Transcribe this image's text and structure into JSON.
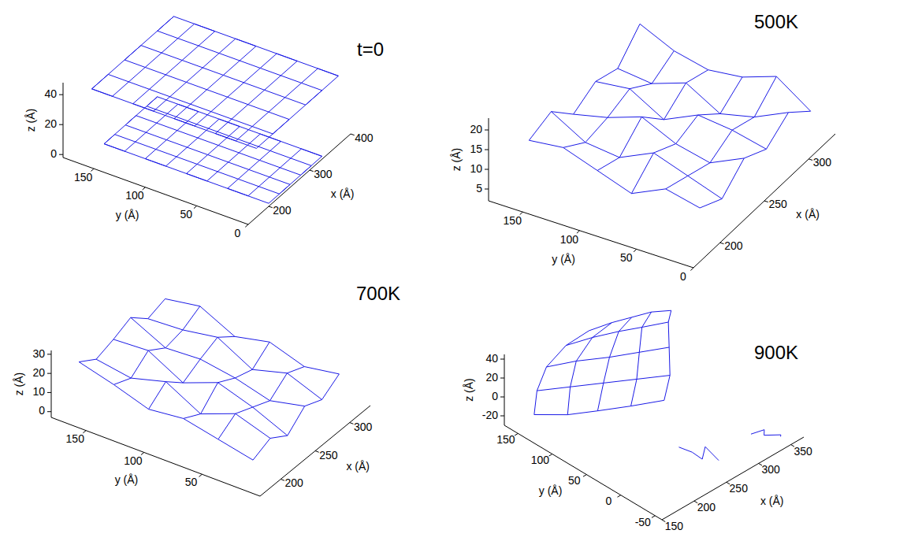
{
  "chart_data": [
    {
      "type": "line3d",
      "title": "t=0",
      "xlabel": "x (Å)",
      "ylabel": "y (Å)",
      "zlabel": "z (Å)",
      "color": "#1a1ae6",
      "xlim": [
        150,
        400
      ],
      "xticks": [
        200,
        300,
        400
      ],
      "ylim": [
        0,
        180
      ],
      "yticks": [
        0,
        50,
        100,
        150
      ],
      "zlim": [
        -2,
        48
      ],
      "zticks": [
        0,
        20,
        40
      ],
      "series": [
        {
          "x": [
            200,
            330,
            330,
            200,
            200,
            330,
            330,
            200,
            200,
            330,
            330,
            200,
            200,
            330,
            330,
            200,
            200,
            330
          ],
          "y": [
            0,
            0,
            20,
            20,
            40,
            40,
            60,
            60,
            80,
            80,
            100,
            100,
            120,
            120,
            140,
            140,
            160,
            160
          ],
          "z": [
            0,
            0,
            0,
            0,
            0,
            0,
            0,
            0,
            0,
            0,
            0,
            0,
            0,
            0,
            0,
            0,
            0,
            0
          ]
        },
        {
          "x": [
            200,
            200,
            226,
            226,
            252,
            252,
            278,
            278,
            304,
            304,
            330,
            330
          ],
          "y": [
            0,
            160,
            160,
            0,
            0,
            160,
            160,
            0,
            0,
            160,
            160,
            0
          ],
          "z": [
            0,
            0,
            0,
            0,
            0,
            0,
            0,
            0,
            0,
            0,
            0,
            0
          ]
        },
        {
          "x": [
            170,
            370,
            370,
            170,
            170,
            370,
            370,
            170,
            170,
            370,
            370,
            170,
            170,
            370,
            370,
            170,
            170,
            370
          ],
          "y": [
            0,
            0,
            20,
            20,
            40,
            40,
            60,
            60,
            80,
            80,
            100,
            100,
            120,
            120,
            140,
            140,
            160,
            160
          ],
          "z": [
            44,
            44,
            44,
            44,
            44,
            44,
            44,
            44,
            44,
            44,
            44,
            44,
            44,
            44,
            44,
            44,
            44,
            44
          ]
        },
        {
          "x": [
            170,
            170,
            210,
            210,
            250,
            250,
            290,
            290,
            330,
            330,
            370,
            370
          ],
          "y": [
            0,
            160,
            160,
            0,
            0,
            160,
            160,
            0,
            0,
            160,
            160,
            0
          ],
          "z": [
            44,
            44,
            44,
            44,
            44,
            44,
            44,
            44,
            44,
            44,
            44,
            44
          ]
        }
      ]
    },
    {
      "type": "line3d",
      "title": "500K",
      "xlabel": "x (Å)",
      "ylabel": "y (Å)",
      "zlabel": "z (Å)",
      "color": "#1a1ae6",
      "xlim": [
        170,
        330
      ],
      "xticks": [
        200,
        250,
        300
      ],
      "ylim": [
        0,
        180
      ],
      "yticks": [
        0,
        50,
        100,
        150
      ],
      "zlim": [
        2,
        23
      ],
      "zticks": [
        5,
        10,
        15,
        20
      ],
      "series": [
        {
          "x": [
            190,
            215,
            240,
            265,
            290,
            315
          ],
          "y": [
            10,
            10,
            10,
            10,
            10,
            10
          ],
          "z": [
            12,
            9,
            14,
            11,
            15,
            10
          ]
        },
        {
          "x": [
            190,
            215,
            240,
            265,
            290,
            315
          ],
          "y": [
            40,
            40,
            40,
            40,
            40,
            40
          ],
          "z": [
            14,
            12,
            10,
            13,
            11,
            16
          ]
        },
        {
          "x": [
            190,
            215,
            240,
            265,
            290,
            315
          ],
          "y": [
            70,
            70,
            70,
            70,
            70,
            70
          ],
          "z": [
            10,
            15,
            12,
            14,
            9,
            13
          ]
        },
        {
          "x": [
            190,
            215,
            240,
            265,
            290,
            315
          ],
          "y": [
            100,
            100,
            100,
            100,
            100,
            100
          ],
          "z": [
            13,
            11,
            16,
            10,
            14,
            12
          ]
        },
        {
          "x": [
            190,
            215,
            240,
            265,
            290,
            315
          ],
          "y": [
            130,
            130,
            130,
            130,
            130,
            130
          ],
          "z": [
            16,
            12,
            13,
            15,
            11,
            14
          ]
        },
        {
          "x": [
            190,
            215,
            240,
            265,
            290,
            315
          ],
          "y": [
            160,
            160,
            160,
            160,
            160,
            160
          ],
          "z": [
            15,
            17,
            11,
            14,
            12,
            18
          ]
        },
        {
          "x": [
            190,
            190,
            190,
            190,
            190,
            190
          ],
          "y": [
            10,
            40,
            70,
            100,
            130,
            160
          ],
          "z": [
            12,
            14,
            10,
            13,
            16,
            15
          ]
        },
        {
          "x": [
            215,
            215,
            215,
            215,
            215,
            215
          ],
          "y": [
            10,
            40,
            70,
            100,
            130,
            160
          ],
          "z": [
            9,
            12,
            15,
            11,
            12,
            17
          ]
        },
        {
          "x": [
            240,
            240,
            240,
            240,
            240,
            240
          ],
          "y": [
            10,
            40,
            70,
            100,
            130,
            160
          ],
          "z": [
            14,
            10,
            12,
            16,
            13,
            11
          ]
        },
        {
          "x": [
            265,
            265,
            265,
            265,
            265,
            265
          ],
          "y": [
            10,
            40,
            70,
            100,
            130,
            160
          ],
          "z": [
            11,
            13,
            14,
            10,
            15,
            14
          ]
        },
        {
          "x": [
            290,
            290,
            290,
            290,
            290,
            290
          ],
          "y": [
            10,
            40,
            70,
            100,
            130,
            160
          ],
          "z": [
            15,
            11,
            9,
            14,
            11,
            12
          ]
        },
        {
          "x": [
            315,
            315,
            315,
            315,
            315,
            315
          ],
          "y": [
            10,
            40,
            70,
            100,
            130,
            160
          ],
          "z": [
            10,
            16,
            13,
            12,
            14,
            18
          ]
        }
      ]
    },
    {
      "type": "line3d",
      "title": "700K",
      "xlabel": "x (Å)",
      "ylabel": "y (Å)",
      "zlabel": "z (Å)",
      "color": "#1a1ae6",
      "xlim": [
        170,
        330
      ],
      "xticks": [
        200,
        250,
        300
      ],
      "ylim": [
        0,
        180
      ],
      "yticks": [
        50,
        100,
        150
      ],
      "zlim": [
        -3,
        32
      ],
      "zticks": [
        0,
        10,
        20,
        30
      ],
      "series": [
        {
          "x": [
            185,
            210,
            235,
            260,
            285,
            310
          ],
          "y": [
            15,
            15,
            15,
            15,
            15,
            15
          ],
          "z": [
            8,
            12,
            6,
            14,
            10,
            16
          ]
        },
        {
          "x": [
            185,
            210,
            235,
            260,
            285,
            310
          ],
          "y": [
            45,
            45,
            45,
            45,
            45,
            45
          ],
          "z": [
            12,
            18,
            14,
            10,
            17,
            13
          ]
        },
        {
          "x": [
            185,
            210,
            235,
            260,
            285,
            310
          ],
          "y": [
            75,
            75,
            75,
            75,
            75,
            75
          ],
          "z": [
            16,
            11,
            20,
            15,
            12,
            19
          ]
        },
        {
          "x": [
            185,
            210,
            235,
            260,
            285,
            310
          ],
          "y": [
            105,
            105,
            105,
            105,
            105,
            105
          ],
          "z": [
            14,
            21,
            13,
            18,
            22,
            15
          ]
        },
        {
          "x": [
            185,
            210,
            235,
            260,
            285,
            310
          ],
          "y": [
            135,
            135,
            135,
            135,
            135,
            135
          ],
          "z": [
            20,
            16,
            23,
            17,
            19,
            24
          ]
        },
        {
          "x": [
            185,
            210,
            235,
            260,
            285,
            310
          ],
          "y": [
            165,
            165,
            165,
            165,
            165,
            165
          ],
          "z": [
            25,
            19,
            22,
            26,
            18,
            21
          ]
        },
        {
          "x": [
            185,
            185,
            185,
            185,
            185,
            185
          ],
          "y": [
            15,
            45,
            75,
            105,
            135,
            165
          ],
          "z": [
            8,
            12,
            16,
            14,
            20,
            25
          ]
        },
        {
          "x": [
            210,
            210,
            210,
            210,
            210,
            210
          ],
          "y": [
            15,
            45,
            75,
            105,
            135,
            165
          ],
          "z": [
            12,
            18,
            11,
            21,
            16,
            19
          ]
        },
        {
          "x": [
            235,
            235,
            235,
            235,
            235,
            235
          ],
          "y": [
            15,
            45,
            75,
            105,
            135,
            165
          ],
          "z": [
            6,
            14,
            20,
            13,
            23,
            22
          ]
        },
        {
          "x": [
            260,
            260,
            260,
            260,
            260,
            260
          ],
          "y": [
            15,
            45,
            75,
            105,
            135,
            165
          ],
          "z": [
            14,
            10,
            15,
            18,
            17,
            26
          ]
        },
        {
          "x": [
            285,
            285,
            285,
            285,
            285,
            285
          ],
          "y": [
            15,
            45,
            75,
            105,
            135,
            165
          ],
          "z": [
            10,
            17,
            12,
            22,
            19,
            18
          ]
        },
        {
          "x": [
            310,
            310,
            310,
            310,
            310,
            310
          ],
          "y": [
            15,
            45,
            75,
            105,
            135,
            165
          ],
          "z": [
            16,
            13,
            19,
            15,
            24,
            21
          ]
        }
      ]
    },
    {
      "type": "line3d",
      "title": "900K",
      "xlabel": "x (Å)",
      "ylabel": "y (Å)",
      "zlabel": "z (Å)",
      "color": "#1a1ae6",
      "xlim": [
        150,
        370
      ],
      "xticks": [
        150,
        200,
        250,
        300,
        350
      ],
      "ylim": [
        -60,
        170
      ],
      "yticks": [
        -50,
        0,
        50,
        100,
        150
      ],
      "zlim": [
        -30,
        45
      ],
      "zticks": [
        -20,
        0,
        20,
        40
      ],
      "series": [
        {
          "x": [
            175,
            195,
            215,
            240,
            265
          ],
          "y": [
            150,
            120,
            95,
            70,
            45
          ],
          "z": [
            -20,
            -15,
            -8,
            -2,
            5
          ]
        },
        {
          "x": [
            190,
            215,
            240,
            265,
            290
          ],
          "y": [
            160,
            135,
            110,
            85,
            60
          ],
          "z": [
            -5,
            0,
            5,
            10,
            15
          ]
        },
        {
          "x": [
            210,
            235,
            260,
            285,
            310
          ],
          "y": [
            165,
            145,
            120,
            100,
            80
          ],
          "z": [
            10,
            15,
            20,
            24,
            28
          ]
        },
        {
          "x": [
            235,
            260,
            285,
            305,
            330
          ],
          "y": [
            160,
            145,
            130,
            115,
            100
          ],
          "z": [
            25,
            30,
            33,
            36,
            38
          ]
        },
        {
          "x": [
            260,
            285,
            305,
            325,
            345
          ],
          "y": [
            150,
            140,
            130,
            120,
            110
          ],
          "z": [
            35,
            38,
            40,
            42,
            40
          ]
        },
        {
          "x": [
            175,
            190,
            210,
            235,
            260
          ],
          "y": [
            150,
            160,
            165,
            160,
            150
          ],
          "z": [
            -20,
            -5,
            10,
            25,
            35
          ]
        },
        {
          "x": [
            195,
            215,
            235,
            260,
            285
          ],
          "y": [
            120,
            135,
            145,
            145,
            140
          ],
          "z": [
            -15,
            0,
            15,
            30,
            38
          ]
        },
        {
          "x": [
            215,
            240,
            260,
            285,
            305
          ],
          "y": [
            95,
            110,
            120,
            130,
            130
          ],
          "z": [
            -8,
            5,
            20,
            33,
            40
          ]
        },
        {
          "x": [
            240,
            265,
            285,
            305,
            325
          ],
          "y": [
            70,
            85,
            100,
            115,
            120
          ],
          "z": [
            -2,
            10,
            24,
            36,
            42
          ]
        },
        {
          "x": [
            265,
            290,
            310,
            330,
            345
          ],
          "y": [
            45,
            60,
            80,
            100,
            110
          ],
          "z": [
            5,
            15,
            28,
            38,
            40
          ]
        },
        {
          "x": [
            240,
            250,
            255,
            265,
            270
          ],
          "y": [
            0,
            -10,
            -20,
            -15,
            -30
          ],
          "z": [
            -15,
            -20,
            -25,
            -18,
            -28
          ]
        },
        {
          "x": [
            320,
            330,
            335,
            345,
            350
          ],
          "y": [
            -30,
            -40,
            -35,
            -50,
            -45
          ],
          "z": [
            -20,
            -15,
            -25,
            -22,
            -28
          ]
        }
      ]
    }
  ]
}
